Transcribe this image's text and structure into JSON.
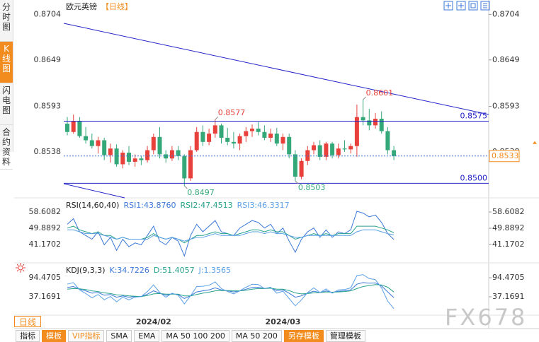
{
  "ui": {
    "side_tabs": [
      "分时图",
      "K线图",
      "闪电图",
      "合约资料"
    ],
    "period_button": "日线",
    "toolbar": [
      "指标",
      "模板",
      "VIP指标",
      "SMA",
      "EMA",
      "MA 50 100 200",
      "MA 50 200",
      "另存模板",
      "管理模板"
    ],
    "watermark": "FX678"
  },
  "chart_data": [
    {
      "type": "candlestick",
      "title": "欧元英镑",
      "subtitle": "【日线】",
      "up_color": "#e8413c",
      "down_color": "#35a87a",
      "categories": [
        null,
        null,
        null,
        null,
        null,
        null,
        null,
        null,
        null,
        null,
        null,
        null,
        null,
        null,
        "2024/02",
        null,
        null,
        null,
        null,
        null,
        null,
        null,
        null,
        null,
        null,
        null,
        null,
        null,
        null,
        null,
        null,
        null,
        null,
        null,
        null,
        "2024/03",
        null,
        null,
        null,
        null,
        null,
        null,
        null,
        null,
        null,
        null,
        null,
        null,
        null,
        null,
        null,
        null,
        null,
        null
      ],
      "open": [
        0.8572,
        0.8562,
        0.8575,
        0.8557,
        0.8552,
        0.8545,
        0.8552,
        0.8534,
        0.8542,
        0.8523,
        0.8537,
        0.8526,
        0.853,
        0.8528,
        0.854,
        0.8556,
        0.8535,
        0.853,
        0.854,
        0.8533,
        0.8506,
        0.854,
        0.8562,
        0.855,
        0.856,
        0.857,
        0.8555,
        0.855,
        0.8548,
        0.8557,
        0.8563,
        0.8566,
        0.8562,
        0.8555,
        0.856,
        0.8548,
        0.8556,
        0.8535,
        0.8508,
        0.8527,
        0.854,
        0.8546,
        0.8532,
        0.8548,
        0.8534,
        0.8542,
        0.8541,
        0.8545,
        0.858,
        0.8576,
        0.857,
        0.8578,
        0.8563,
        0.854
      ],
      "high": [
        0.858,
        0.8583,
        0.858,
        0.8568,
        0.856,
        0.8556,
        0.8555,
        0.8548,
        0.8547,
        0.854,
        0.8545,
        0.8535,
        0.8533,
        0.8545,
        0.856,
        0.8568,
        0.854,
        0.8545,
        0.8545,
        0.8535,
        0.8545,
        0.8568,
        0.857,
        0.8566,
        0.8577,
        0.8572,
        0.8567,
        0.8562,
        0.856,
        0.8568,
        0.8571,
        0.8574,
        0.857,
        0.8566,
        0.8567,
        0.856,
        0.856,
        0.854,
        0.853,
        0.8545,
        0.855,
        0.8552,
        0.855,
        0.855,
        0.8548,
        0.8552,
        0.8548,
        0.8595,
        0.8601,
        0.859,
        0.8585,
        0.8587,
        0.8568,
        0.8545
      ],
      "low": [
        0.8558,
        0.856,
        0.8555,
        0.8548,
        0.8542,
        0.8536,
        0.8528,
        0.8525,
        0.852,
        0.8518,
        0.8522,
        0.852,
        0.8522,
        0.8525,
        0.8535,
        0.853,
        0.8525,
        0.8527,
        0.8528,
        0.8497,
        0.8503,
        0.8538,
        0.8545,
        0.8546,
        0.8555,
        0.8548,
        0.8546,
        0.8542,
        0.854,
        0.855,
        0.8556,
        0.8558,
        0.8552,
        0.855,
        0.8545,
        0.854,
        0.853,
        0.8503,
        0.8505,
        0.8522,
        0.8535,
        0.8528,
        0.8528,
        0.853,
        0.853,
        0.8538,
        0.8536,
        0.8532,
        0.857,
        0.8564,
        0.8566,
        0.856,
        0.8535,
        0.8528
      ],
      "close": [
        0.8562,
        0.8575,
        0.8557,
        0.8552,
        0.8545,
        0.8552,
        0.8534,
        0.8542,
        0.8523,
        0.8537,
        0.8526,
        0.853,
        0.8528,
        0.854,
        0.8556,
        0.8535,
        0.853,
        0.854,
        0.8533,
        0.8506,
        0.854,
        0.8562,
        0.855,
        0.856,
        0.857,
        0.8555,
        0.855,
        0.8548,
        0.8557,
        0.8563,
        0.8566,
        0.8562,
        0.8555,
        0.856,
        0.8548,
        0.8556,
        0.8535,
        0.8508,
        0.8527,
        0.854,
        0.8546,
        0.8532,
        0.8548,
        0.8534,
        0.8542,
        0.8541,
        0.8545,
        0.858,
        0.8576,
        0.857,
        0.8578,
        0.8563,
        0.854,
        0.8533
      ],
      "hlines": [
        {
          "value": 0.8575,
          "label": "0.8575"
        },
        {
          "value": 0.85,
          "label": "0.8500"
        }
      ],
      "ylim": [
        0.8485,
        0.8712
      ],
      "yticks": [
        0.8704,
        0.8649,
        0.8593,
        0.8538
      ],
      "grid": false
    },
    {
      "type": "line",
      "title": "RSI(14,60,40)",
      "ylim": [
        32.07,
        65.05
      ],
      "yticks": [
        58.6082,
        49.8892,
        41.1702
      ],
      "grid": false,
      "series": [
        {
          "name": "RSI1:43.8760",
          "color": "#3b78d8",
          "values": [
            52,
            55,
            48,
            46,
            44,
            48,
            41,
            45,
            38,
            44,
            40,
            42,
            41,
            46,
            51,
            43,
            41,
            45,
            43,
            35,
            46,
            52,
            48,
            51,
            54,
            48,
            47,
            46,
            50,
            52,
            54,
            53,
            50,
            52,
            47,
            50,
            43,
            37,
            44,
            48,
            50,
            45,
            49,
            45,
            48,
            47,
            49,
            59,
            58,
            56,
            57,
            53,
            47,
            43.876
          ]
        },
        {
          "name": "RSI2:47.4513",
          "color": "#27a28c",
          "values": [
            50,
            51,
            49,
            48,
            47,
            48,
            46,
            46,
            44,
            45,
            44,
            44,
            44,
            45,
            47,
            45,
            44,
            45,
            44,
            42,
            44,
            46,
            46,
            47,
            48,
            47,
            47,
            46,
            47,
            48,
            49,
            49,
            48,
            49,
            48,
            48,
            46,
            44,
            45,
            46,
            47,
            46,
            47,
            46,
            47,
            47,
            47,
            51,
            51,
            51,
            51,
            50,
            49,
            47.4513
          ]
        },
        {
          "name": "RSI3:46.3317",
          "color": "#5aa0e6",
          "values": [
            49,
            49,
            48,
            47,
            47,
            47,
            46,
            45,
            44,
            45,
            44,
            44,
            44,
            44,
            46,
            45,
            44,
            45,
            44,
            43,
            44,
            45,
            45,
            46,
            47,
            46,
            46,
            46,
            46,
            47,
            48,
            48,
            47,
            48,
            47,
            47,
            46,
            45,
            45,
            46,
            46,
            46,
            46,
            46,
            46,
            46,
            46,
            48,
            49,
            49,
            49,
            48,
            47,
            46.3317
          ]
        }
      ]
    },
    {
      "type": "line",
      "title": "KDJ(9,3,3)",
      "ylim": [
        -16,
        133
      ],
      "yticks": [
        94.4705,
        37.1691
      ],
      "grid": false,
      "series": [
        {
          "name": "K:34.7226",
          "color": "#3b78d8",
          "values": [
            65,
            68,
            60,
            55,
            48,
            50,
            42,
            44,
            36,
            40,
            36,
            38,
            38,
            45,
            55,
            48,
            42,
            46,
            44,
            32,
            40,
            52,
            55,
            58,
            64,
            58,
            55,
            52,
            55,
            60,
            65,
            66,
            62,
            64,
            56,
            58,
            48,
            36,
            40,
            48,
            54,
            50,
            55,
            50,
            54,
            55,
            58,
            75,
            80,
            78,
            79,
            70,
            52,
            34.7226
          ]
        },
        {
          "name": "D:51.4057",
          "color": "#27a28c",
          "values": [
            60,
            62,
            61,
            59,
            55,
            53,
            49,
            47,
            43,
            42,
            40,
            39,
            38,
            41,
            46,
            47,
            45,
            45,
            45,
            40,
            40,
            44,
            48,
            51,
            55,
            56,
            56,
            55,
            55,
            57,
            60,
            62,
            62,
            63,
            60,
            60,
            56,
            49,
            46,
            47,
            49,
            50,
            52,
            51,
            52,
            53,
            55,
            62,
            68,
            71,
            74,
            73,
            66,
            51.4057
          ]
        },
        {
          "name": "J:1.3565",
          "color": "#5aa0e6",
          "values": [
            75,
            80,
            58,
            47,
            34,
            44,
            28,
            38,
            22,
            36,
            28,
            36,
            38,
            53,
            73,
            50,
            36,
            48,
            42,
            16,
            40,
            68,
            69,
            72,
            82,
            62,
            53,
            46,
            55,
            66,
            75,
            74,
            62,
            66,
            48,
            54,
            32,
            10,
            28,
            50,
            64,
            50,
            61,
            48,
            58,
            59,
            64,
            101,
            104,
            92,
            89,
            64,
            24,
            1.3565
          ]
        }
      ]
    }
  ]
}
